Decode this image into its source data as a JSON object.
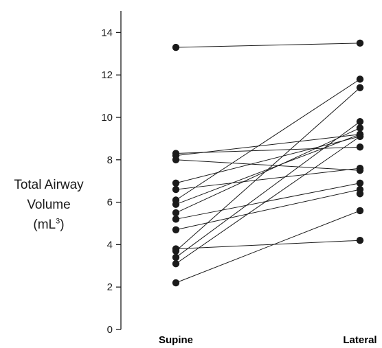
{
  "chart_data": {
    "type": "line",
    "categories": [
      "Supine",
      "Lateral"
    ],
    "ylabel_lines": [
      "Total Airway",
      "Volume"
    ],
    "yunit_base": "(mL",
    "yunit_exp": "3",
    "yunit_close": ")",
    "ylim": [
      0,
      15
    ],
    "yticks": [
      "0",
      "2",
      "4",
      "6",
      "8",
      "10",
      "12",
      "14"
    ],
    "grid": false,
    "series": [
      {
        "values": [
          13.3,
          13.5
        ]
      },
      {
        "values": [
          8.3,
          8.6
        ]
      },
      {
        "values": [
          8.2,
          9.2
        ]
      },
      {
        "values": [
          8.0,
          7.5
        ]
      },
      {
        "values": [
          6.9,
          9.1
        ]
      },
      {
        "values": [
          6.6,
          7.6
        ]
      },
      {
        "values": [
          6.1,
          11.8
        ]
      },
      {
        "values": [
          5.9,
          9.2
        ]
      },
      {
        "values": [
          5.5,
          9.5
        ]
      },
      {
        "values": [
          5.2,
          6.9
        ]
      },
      {
        "values": [
          4.7,
          6.6
        ]
      },
      {
        "values": [
          3.8,
          4.2
        ]
      },
      {
        "values": [
          3.7,
          11.4
        ]
      },
      {
        "values": [
          3.4,
          9.8
        ]
      },
      {
        "values": [
          3.1,
          9.1
        ]
      },
      {
        "values": [
          2.2,
          5.6
        ]
      }
    ],
    "extra_points": [
      {
        "category": "Lateral",
        "value": 6.4
      }
    ]
  }
}
